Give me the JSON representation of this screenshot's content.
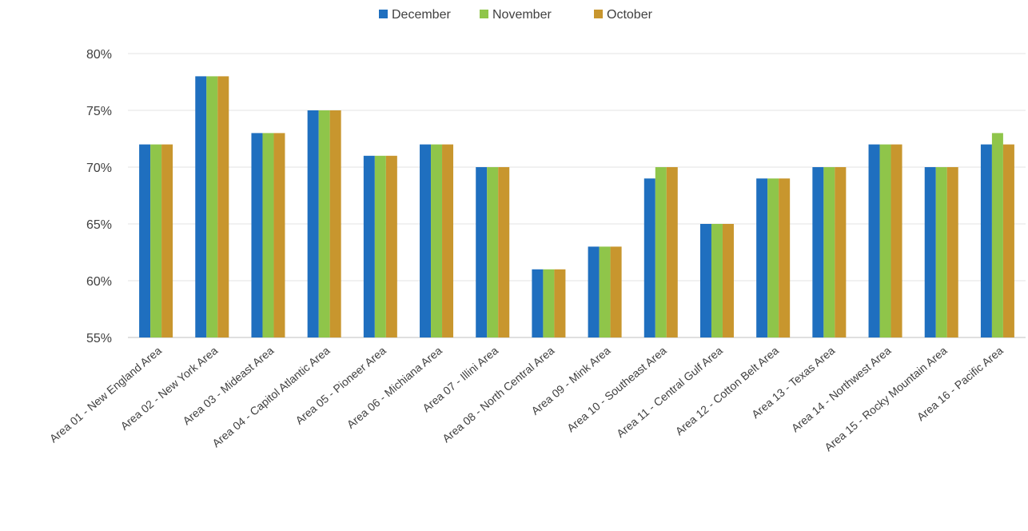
{
  "chart_data": {
    "type": "bar",
    "title": "",
    "xlabel": "",
    "ylabel": "",
    "ylim": [
      0.55,
      0.8
    ],
    "yticks": [
      "55%",
      "60%",
      "65%",
      "70%",
      "75%",
      "80%"
    ],
    "ytick_values": [
      0.55,
      0.6,
      0.65,
      0.7,
      0.75,
      0.8
    ],
    "grid": true,
    "legend_position": "top-center",
    "categories": [
      "Area 01 - New England Area",
      "Area 02 - New York Area",
      "Area 03 - Mideast Area",
      "Area 04 - Capitol Atlantic Area",
      "Area 05 - Pioneer Area",
      "Area 06 - Michiana Area",
      "Area 07 - Illini Area",
      "Area 08 - North Central Area",
      "Area 09 - Mink Area",
      "Area 10 - Southeast Area",
      "Area 11 - Central Gulf Area",
      "Area 12 - Cotton Belt Area",
      "Area 13 - Texas Area",
      "Area 14 - Northwest Area",
      "Area 15 - Rocky Mountain Area",
      "Area 16 - Pacific Area"
    ],
    "series": [
      {
        "name": "December",
        "color": "#1f6fbf",
        "values": [
          0.72,
          0.78,
          0.73,
          0.75,
          0.71,
          0.72,
          0.7,
          0.61,
          0.63,
          0.69,
          0.65,
          0.69,
          0.7,
          0.72,
          0.7,
          0.72
        ]
      },
      {
        "name": "November",
        "color": "#8fc54a",
        "values": [
          0.72,
          0.78,
          0.73,
          0.75,
          0.71,
          0.72,
          0.7,
          0.61,
          0.63,
          0.7,
          0.65,
          0.69,
          0.7,
          0.72,
          0.7,
          0.73
        ]
      },
      {
        "name": "October",
        "color": "#c8962e",
        "values": [
          0.72,
          0.78,
          0.73,
          0.75,
          0.71,
          0.72,
          0.7,
          0.61,
          0.63,
          0.7,
          0.65,
          0.69,
          0.7,
          0.72,
          0.7,
          0.72
        ]
      }
    ]
  }
}
